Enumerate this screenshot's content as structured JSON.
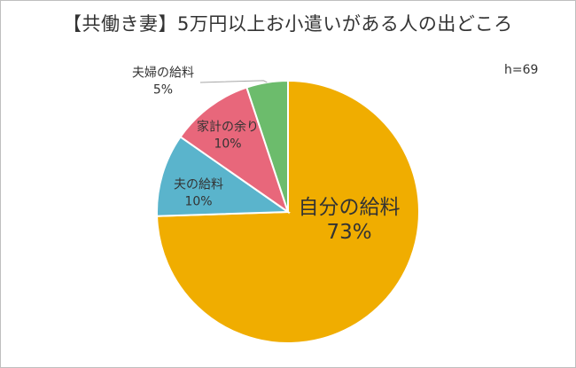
{
  "chart_data": {
    "type": "pie",
    "title": "【共働き妻】5万円以上お小遣いがある人の出どころ",
    "sample_size": "h=69",
    "start_angle_deg": 0,
    "direction": "clockwise",
    "slices": [
      {
        "label": "自分の給料",
        "value": 73,
        "value_label": "73%",
        "color": "#f0ad00"
      },
      {
        "label": "夫の給料",
        "value": 10,
        "value_label": "10%",
        "color": "#5ab4cc"
      },
      {
        "label": "家計の余り",
        "value": 10,
        "value_label": "10%",
        "color": "#e8677b"
      },
      {
        "label": "夫婦の給料",
        "value": 5,
        "value_label": "5%",
        "color": "#6cbc6c"
      }
    ]
  }
}
